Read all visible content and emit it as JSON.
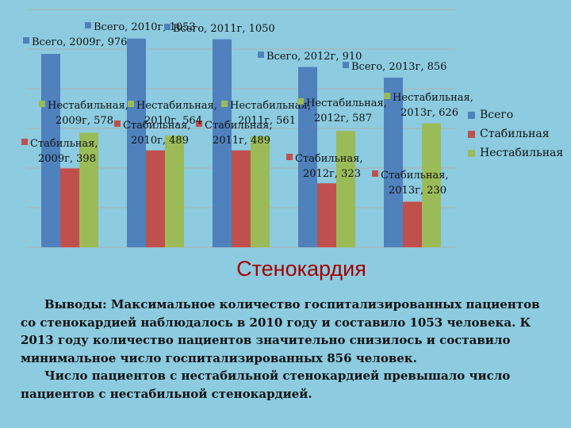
{
  "chart_data": {
    "type": "bar",
    "categories": [
      "2009г",
      "2010г",
      "2011г",
      "2012г",
      "2013г"
    ],
    "series": [
      {
        "name": "Всего",
        "color": "#4f81bd",
        "values": [
          976,
          1053,
          1050,
          910,
          856
        ],
        "labels": [
          "Всего, 2009г, 976",
          "Всего, 2010г, 1053",
          "Всего, 2011г, 1050",
          "Всего, 2012г, 910",
          "Всего, 2013г, 856"
        ]
      },
      {
        "name": "Стабильная",
        "color": "#c0504d",
        "values": [
          398,
          489,
          489,
          323,
          230
        ],
        "labels": [
          "Стабильная, 2009г, 398",
          "Стабильная, 2010г, 489",
          "Стабильная, 2011г, 489",
          "Стабильная, 2012г, 323",
          "Стабильная, 2013г, 230"
        ]
      },
      {
        "name": "Нестабильная",
        "color": "#9bbb59",
        "values": [
          578,
          564,
          561,
          587,
          626
        ],
        "labels": [
          "Нестабильная, 2009г, 578",
          "Нестабильная, 2010г, 564",
          "Нестабильная, 2011г, 561",
          "Нестабильная, 2012г, 587",
          "Нестабильная, 2013г, 626"
        ]
      }
    ],
    "ylim": [
      0,
      1200
    ],
    "grid": true,
    "legend_position": "right",
    "title": "Стенокардия"
  },
  "conclusion": {
    "paragraph1": "Выводы: Максимальное количество госпитализированных пациентов со стенокардией наблюдалось в 2010 году и составило 1053 человека. К 2013 году количество пациентов значительно снизилось и составило минимальное число госпитализированных 856 человек.",
    "paragraph2": "Число пациентов с нестабильной стенокардией превышало число пациентов с нестабильной стенокардией."
  }
}
